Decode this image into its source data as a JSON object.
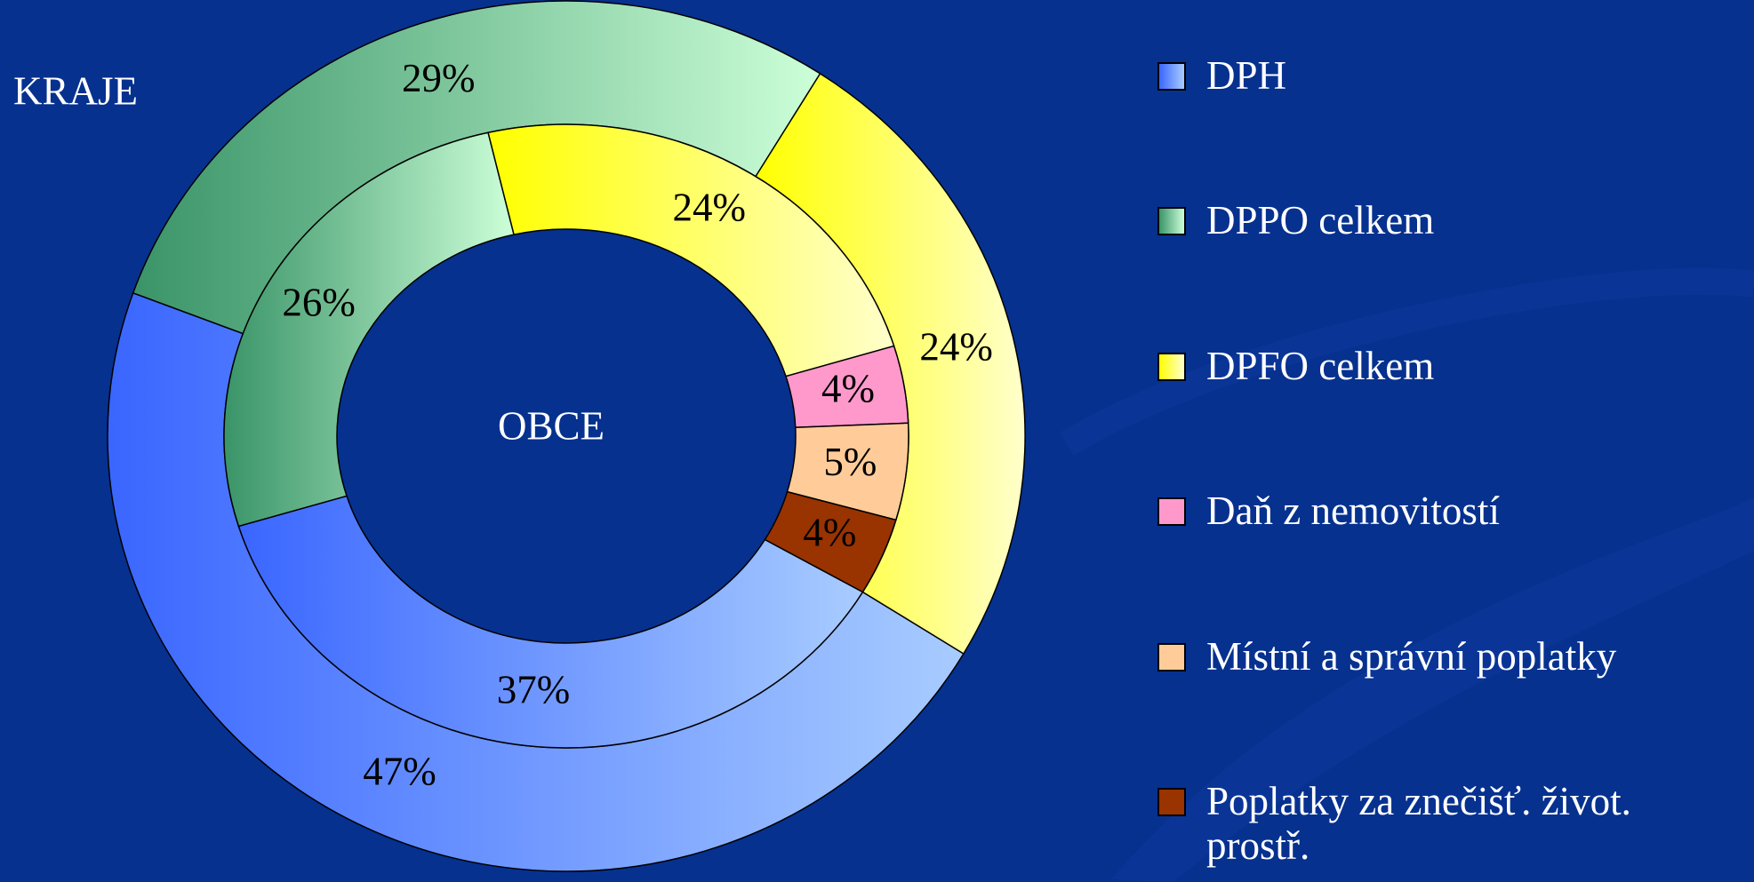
{
  "chart_data": {
    "type": "doughnut",
    "categories": [
      "DPH",
      "DPPO celkem",
      "DPFO celkem",
      "Daň z nemovitostí",
      "Místní a správní poplatky",
      "Poplatky za znečišť. život. prostř."
    ],
    "colors": [
      [
        "#3a66ff",
        "#a8ccff"
      ],
      [
        "#3a9468",
        "#ccffd8"
      ],
      [
        "#ffff00",
        "#ffffcc"
      ],
      [
        "#ff99cc",
        "#ff99cc"
      ],
      [
        "#ffcc99",
        "#ffcc99"
      ],
      [
        "#993300",
        "#993300"
      ]
    ],
    "series": [
      {
        "name": "KRAJE",
        "values": [
          47,
          29,
          24,
          null,
          null,
          null
        ],
        "value_labels": [
          "47%",
          "29%",
          "24%",
          null,
          null,
          null
        ]
      },
      {
        "name": "OBCE",
        "values": [
          37,
          26,
          24,
          4,
          5,
          4
        ],
        "value_labels": [
          "37%",
          "26%",
          "24%",
          "4%",
          "5%",
          "4%"
        ]
      }
    ],
    "legend": "right"
  }
}
